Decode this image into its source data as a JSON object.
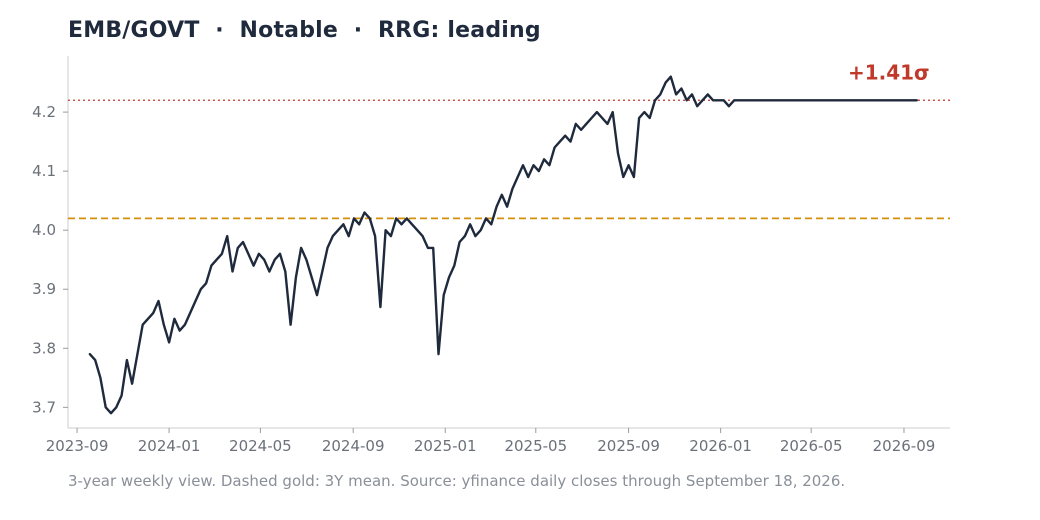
{
  "title": "EMB/GOVT  ·  Notable  ·  RRG: leading",
  "footer": "3-year weekly view. Dashed gold: 3Y mean. Source: yfinance daily closes through September 18, 2026.",
  "colors": {
    "line": "#1f2a3d",
    "mean": "#d4900a",
    "current": "#c0392b",
    "axis": "#cccccc",
    "tick_text": "#6b7079"
  },
  "chart_data": {
    "type": "line",
    "title": "EMB/GOVT  ·  Notable  ·  RRG: leading",
    "xlabel": "",
    "ylabel": "",
    "xlim": [
      "2023-08-20",
      "2026-11-01"
    ],
    "ylim": [
      3.665,
      4.295
    ],
    "grid": false,
    "x_ticks": [
      "2023-09",
      "2024-01",
      "2024-05",
      "2024-09",
      "2025-01",
      "2025-05",
      "2025-09",
      "2026-01",
      "2026-05",
      "2026-09"
    ],
    "y_ticks": [
      3.7,
      3.8,
      3.9,
      4.0,
      4.1,
      4.2
    ],
    "mean_line": 4.02,
    "current_line": 4.22,
    "annotation": "+1.41σ",
    "series": [
      {
        "x": [
          "2023-09-18",
          "2023-09-25",
          "2023-10-02",
          "2023-10-09",
          "2023-10-16",
          "2023-10-23",
          "2023-10-30",
          "2023-11-06",
          "2023-11-13",
          "2023-11-20",
          "2023-11-27",
          "2023-12-04",
          "2023-12-11",
          "2023-12-18",
          "2023-12-25",
          "2024-01-01",
          "2024-01-08",
          "2024-01-15",
          "2024-01-22",
          "2024-01-29",
          "2024-02-05",
          "2024-02-12",
          "2024-02-19",
          "2024-02-26",
          "2024-03-04",
          "2024-03-11",
          "2024-03-18",
          "2024-03-25",
          "2024-04-01",
          "2024-04-08",
          "2024-04-15",
          "2024-04-22",
          "2024-04-29",
          "2024-05-06",
          "2024-05-13",
          "2024-05-20",
          "2024-05-27",
          "2024-06-03",
          "2024-06-10",
          "2024-06-17",
          "2024-06-24",
          "2024-07-01",
          "2024-07-08",
          "2024-07-15",
          "2024-07-22",
          "2024-07-29",
          "2024-08-05",
          "2024-08-12",
          "2024-08-19",
          "2024-08-26",
          "2024-09-02",
          "2024-09-09",
          "2024-09-16",
          "2024-09-23",
          "2024-09-30",
          "2024-10-07",
          "2024-10-14",
          "2024-10-21",
          "2024-10-28",
          "2024-11-04",
          "2024-11-11",
          "2024-11-18",
          "2024-11-25",
          "2024-12-02",
          "2024-12-09",
          "2024-12-16",
          "2024-12-23",
          "2024-12-30",
          "2025-01-06",
          "2025-01-13",
          "2025-01-20",
          "2025-01-27",
          "2025-02-03",
          "2025-02-10",
          "2025-02-17",
          "2025-02-24",
          "2025-03-03",
          "2025-03-10",
          "2025-03-17",
          "2025-03-24",
          "2025-03-31",
          "2025-04-07",
          "2025-04-14",
          "2025-04-21",
          "2025-04-28",
          "2025-05-05",
          "2025-05-12",
          "2025-05-19",
          "2025-05-26",
          "2025-06-02",
          "2025-06-09",
          "2025-06-16",
          "2025-06-23",
          "2025-06-30",
          "2025-07-07",
          "2025-07-14",
          "2025-07-21",
          "2025-07-28",
          "2025-08-04",
          "2025-08-11",
          "2025-08-18",
          "2025-08-25",
          "2025-09-01",
          "2025-09-08",
          "2025-09-15",
          "2025-09-22",
          "2025-09-29",
          "2025-10-06",
          "2025-10-13",
          "2025-10-20",
          "2025-10-27",
          "2025-11-03",
          "2025-11-10",
          "2025-11-17",
          "2025-11-24",
          "2025-12-01",
          "2025-12-08",
          "2025-12-15",
          "2025-12-22",
          "2025-12-29",
          "2026-01-05",
          "2026-01-12",
          "2026-01-19",
          "2026-01-26",
          "2026-02-02",
          "2026-02-09",
          "2026-02-16",
          "2026-02-23",
          "2026-03-02",
          "2026-03-09",
          "2026-03-16",
          "2026-03-23",
          "2026-03-30",
          "2026-04-06",
          "2026-04-13",
          "2026-04-20",
          "2026-04-27",
          "2026-05-04",
          "2026-05-11",
          "2026-05-18",
          "2026-05-25",
          "2026-06-01",
          "2026-06-08",
          "2026-06-15",
          "2026-06-22",
          "2026-06-29",
          "2026-07-06",
          "2026-07-13",
          "2026-07-20",
          "2026-07-27",
          "2026-08-03",
          "2026-08-10",
          "2026-08-17",
          "2026-08-24",
          "2026-08-31",
          "2026-09-07",
          "2026-09-14",
          "2026-09-18"
        ],
        "y": [
          3.79,
          3.78,
          3.75,
          3.7,
          3.69,
          3.7,
          3.72,
          3.78,
          3.74,
          3.79,
          3.84,
          3.85,
          3.86,
          3.88,
          3.84,
          3.81,
          3.85,
          3.83,
          3.84,
          3.86,
          3.88,
          3.9,
          3.91,
          3.94,
          3.95,
          3.96,
          3.99,
          3.93,
          3.97,
          3.98,
          3.96,
          3.94,
          3.96,
          3.95,
          3.93,
          3.95,
          3.96,
          3.93,
          3.84,
          3.92,
          3.97,
          3.95,
          3.92,
          3.89,
          3.93,
          3.97,
          3.99,
          4.0,
          4.01,
          3.99,
          4.02,
          4.01,
          4.03,
          4.02,
          3.99,
          3.87,
          4.0,
          3.99,
          4.02,
          4.01,
          4.02,
          4.01,
          4.0,
          3.99,
          3.97,
          3.97,
          3.79,
          3.89,
          3.92,
          3.94,
          3.98,
          3.99,
          4.01,
          3.99,
          4.0,
          4.02,
          4.01,
          4.04,
          4.06,
          4.04,
          4.07,
          4.09,
          4.11,
          4.09,
          4.11,
          4.1,
          4.12,
          4.11,
          4.14,
          4.15,
          4.16,
          4.15,
          4.18,
          4.17,
          4.18,
          4.19,
          4.2,
          4.19,
          4.18,
          4.2,
          4.13,
          4.09,
          4.11,
          4.09,
          4.19,
          4.2,
          4.19,
          4.22,
          4.23,
          4.25,
          4.26,
          4.23,
          4.24,
          4.22,
          4.23,
          4.21,
          4.22,
          4.23,
          4.22,
          4.22,
          4.22,
          4.21,
          4.22,
          4.22,
          4.22,
          4.22,
          4.22,
          4.22,
          4.22,
          4.22,
          4.22,
          4.22,
          4.22,
          4.22,
          4.22,
          4.22,
          4.22,
          4.22,
          4.22,
          4.22,
          4.22,
          4.22,
          4.22,
          4.22,
          4.22,
          4.22,
          4.22,
          4.22,
          4.22,
          4.22,
          4.22,
          4.22,
          4.22,
          4.22,
          4.22,
          4.22,
          4.22,
          4.22
        ],
        "note": ""
      }
    ]
  }
}
